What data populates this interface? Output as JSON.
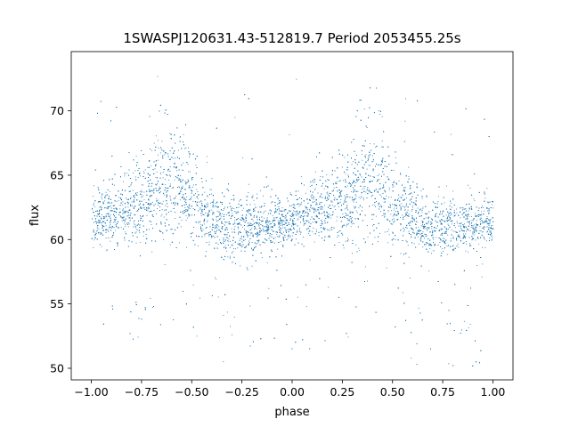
{
  "chart_data": {
    "type": "scatter",
    "title": "1SWASPJ120631.43-512819.7 Period 2053455.25s",
    "xlabel": "phase",
    "ylabel": "flux",
    "xlim": [
      -1.1,
      1.1
    ],
    "ylim": [
      49.1,
      74.6
    ],
    "x_ticks": [
      -1.0,
      -0.75,
      -0.5,
      -0.25,
      0.0,
      0.25,
      0.5,
      0.75,
      1.0
    ],
    "x_tick_labels": [
      "−1.00",
      "−0.75",
      "−0.50",
      "−0.25",
      "0.00",
      "0.25",
      "0.50",
      "0.75",
      "1.00"
    ],
    "y_ticks": [
      50,
      55,
      60,
      65,
      70
    ],
    "y_tick_labels": [
      "50",
      "55",
      "60",
      "65",
      "70"
    ],
    "grid": false,
    "marker_color": "#1f77b4",
    "series": [
      {
        "name": "",
        "description_of_shape": "phase-folded light curve repeated over two cycles",
        "x": [
          -1.0,
          -0.95,
          -0.9,
          -0.85,
          -0.8,
          -0.75,
          -0.7,
          -0.65,
          -0.6,
          -0.55,
          -0.5,
          -0.45,
          -0.4,
          -0.35,
          -0.3,
          -0.25,
          -0.2,
          -0.15,
          -0.1,
          -0.05,
          0.0,
          0.05,
          0.1,
          0.15,
          0.2,
          0.25,
          0.3,
          0.35,
          0.4,
          0.45,
          0.5,
          0.55,
          0.6,
          0.65,
          0.7,
          0.75,
          0.8,
          0.85,
          0.9,
          0.95,
          1.0
        ],
        "y": [
          61.3,
          61.8,
          62.0,
          62.3,
          62.5,
          62.8,
          63.3,
          64.0,
          64.3,
          63.5,
          62.5,
          62.0,
          61.5,
          61.0,
          60.7,
          60.8,
          61.0,
          61.0,
          61.2,
          61.2,
          61.3,
          61.8,
          62.0,
          62.3,
          62.5,
          62.8,
          63.3,
          64.0,
          64.3,
          63.5,
          62.5,
          62.0,
          61.5,
          61.0,
          60.7,
          60.8,
          61.0,
          61.0,
          61.2,
          61.2,
          61.3
        ],
        "spread": [
          1.2,
          1.3,
          1.4,
          1.5,
          1.6,
          1.8,
          2.2,
          2.6,
          2.8,
          2.4,
          1.9,
          1.7,
          1.6,
          1.5,
          1.4,
          1.3,
          1.3,
          1.2,
          1.2,
          1.2,
          1.2,
          1.3,
          1.4,
          1.5,
          1.6,
          1.8,
          2.2,
          2.6,
          2.8,
          2.4,
          1.9,
          1.7,
          1.6,
          1.5,
          1.4,
          1.3,
          1.3,
          1.2,
          1.2,
          1.2,
          1.2
        ]
      }
    ]
  }
}
